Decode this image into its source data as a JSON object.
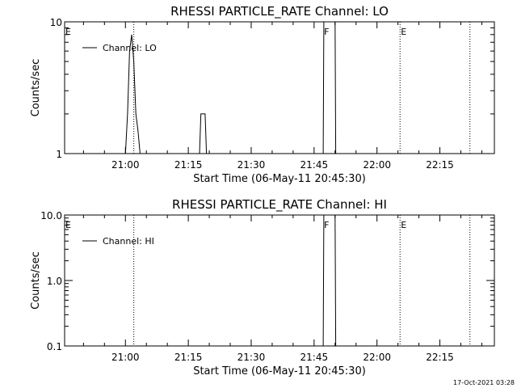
{
  "timestamp": "17-Oct-2021 03:28",
  "colors": {
    "background": "#ffffff",
    "ink": "#000000"
  },
  "chart_data": [
    {
      "type": "line",
      "title": "RHESSI PARTICLE_RATE Channel: LO",
      "xlabel": "Start Time (06-May-11 20:45:30)",
      "ylabel": "Counts/sec",
      "y_scale": "log",
      "ylim": [
        1,
        10
      ],
      "y_ticks": [
        1,
        10
      ],
      "y_tick_labels": [
        "1",
        "10"
      ],
      "xlim": [
        "20:45:30",
        "22:28:00"
      ],
      "x_ticks": [
        "21:00",
        "21:15",
        "21:30",
        "21:45",
        "22:00",
        "22:15"
      ],
      "legend": {
        "position": "top-left",
        "entries": [
          "Channel: LO"
        ]
      },
      "series": [
        {
          "name": "Channel: LO",
          "x": [
            "20:45:30",
            "21:00:00",
            "21:00:30",
            "21:01:00",
            "21:01:30",
            "21:02:00",
            "21:02:30",
            "21:03:00",
            "21:03:30",
            "21:04:00",
            "21:17:40",
            "21:18:00",
            "21:18:30",
            "21:19:00",
            "21:19:20",
            "21:47:10",
            "21:47:20",
            "21:50:00",
            "21:50:10",
            "21:50:20"
          ],
          "y": [
            1,
            1,
            2,
            6,
            8,
            5,
            2,
            1.5,
            1,
            1,
            1,
            2,
            2,
            2,
            1,
            1,
            10,
            10,
            1,
            1
          ]
        }
      ],
      "annotations": [
        {
          "text": "E",
          "x": "20:45:30"
        },
        {
          "text": "F",
          "x": "21:47:10"
        },
        {
          "text": "E",
          "x": "22:05:30"
        }
      ],
      "vertical_lines": [
        {
          "x": "21:02:00",
          "style": "dotted"
        },
        {
          "x": "22:05:30",
          "style": "dotted"
        },
        {
          "x": "22:22:10",
          "style": "dotted"
        }
      ],
      "grid": false
    },
    {
      "type": "line",
      "title": "RHESSI PARTICLE_RATE Channel: HI",
      "xlabel": "Start Time (06-May-11 20:45:30)",
      "ylabel": "Counts/sec",
      "y_scale": "log",
      "ylim": [
        0.1,
        10
      ],
      "y_ticks": [
        0.1,
        1,
        10
      ],
      "y_tick_labels": [
        "0.1",
        "1.0",
        "10.0"
      ],
      "xlim": [
        "20:45:30",
        "22:28:00"
      ],
      "x_ticks": [
        "21:00",
        "21:15",
        "21:30",
        "21:45",
        "22:00",
        "22:15"
      ],
      "legend": {
        "position": "top-left",
        "entries": [
          "Channel: HI"
        ]
      },
      "series": [
        {
          "name": "Channel: HI",
          "x": [
            "21:47:10",
            "21:47:20",
            "21:50:00",
            "21:50:10"
          ],
          "y": [
            0.1,
            10,
            10,
            0.1
          ]
        }
      ],
      "annotations": [
        {
          "text": "E",
          "x": "20:45:30"
        },
        {
          "text": "F",
          "x": "21:47:10"
        },
        {
          "text": "E",
          "x": "22:05:30"
        }
      ],
      "vertical_lines": [
        {
          "x": "21:02:00",
          "style": "dotted"
        },
        {
          "x": "22:05:30",
          "style": "dotted"
        },
        {
          "x": "22:22:10",
          "style": "dotted"
        }
      ],
      "grid": false
    }
  ]
}
